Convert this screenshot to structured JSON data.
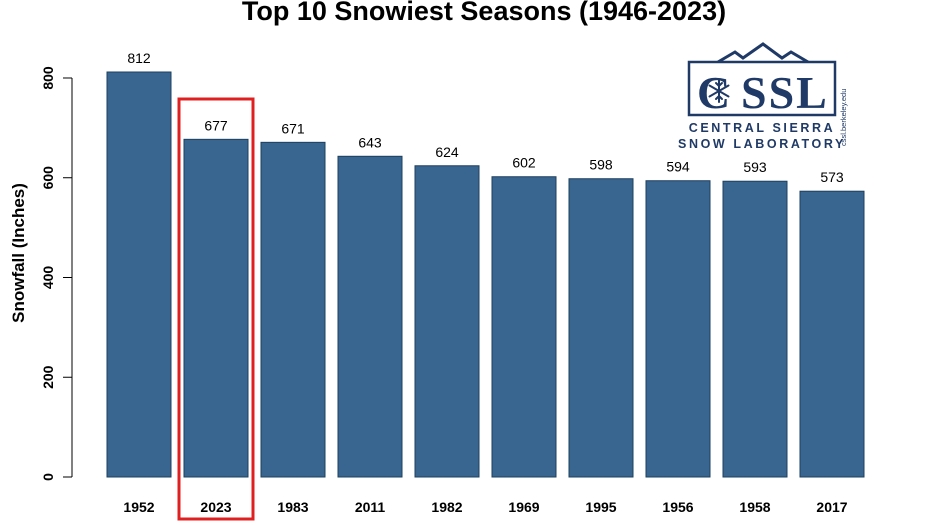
{
  "chart_data": {
    "type": "bar",
    "title": "Top 10 Snowiest Seasons (1946-2023)",
    "xlabel": "",
    "ylabel": "Snowfall (Inches)",
    "categories": [
      "1952",
      "2023",
      "1983",
      "2011",
      "1982",
      "1969",
      "1995",
      "1956",
      "1958",
      "2017"
    ],
    "values": [
      812,
      677,
      671,
      643,
      624,
      602,
      598,
      594,
      593,
      573
    ],
    "data_labels": [
      "812",
      "677",
      "671",
      "643",
      "624",
      "602",
      "598",
      "594",
      "593",
      "573"
    ],
    "ylim": [
      0,
      812
    ],
    "yticks": [
      0,
      200,
      400,
      600,
      800
    ],
    "ytick_labels": [
      "0",
      "200",
      "400",
      "600",
      "800"
    ],
    "grid": false,
    "legend": "none",
    "bar_color": "#386690",
    "highlight": {
      "category": "2023",
      "color": "#e02020"
    }
  },
  "logo": {
    "acronym": "CSSL",
    "line1": "CENTRAL SIERRA",
    "line2": "SNOW LABORATORY",
    "url": "cssl.berkeley.edu",
    "color": "#1f3a66"
  }
}
